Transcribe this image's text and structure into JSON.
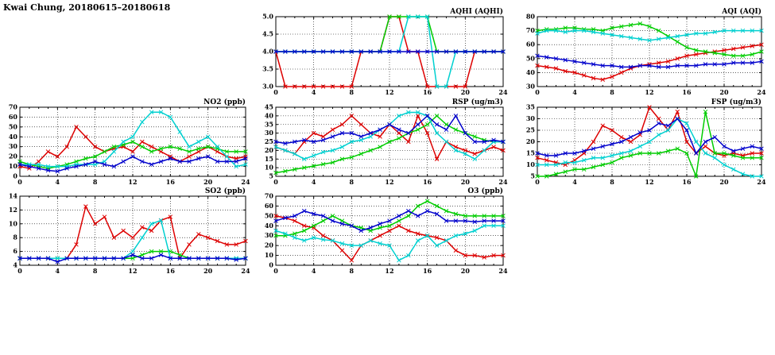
{
  "page": {
    "title": "Kwai Chung, 20180615–20180618"
  },
  "chart_x_hours": [
    0,
    1,
    2,
    3,
    4,
    5,
    6,
    7,
    8,
    9,
    10,
    11,
    12,
    13,
    14,
    15,
    16,
    17,
    18,
    19,
    20,
    21,
    22,
    23,
    24
  ],
  "colors": {
    "red": "#dd0000",
    "blue": "#0000cc",
    "green": "#00cc00",
    "cyan": "#00d0d0"
  },
  "chart_data": [
    {
      "type": "line",
      "title": "AQHI (AQHI)",
      "xlabel": "",
      "ylabel": "",
      "xlim": [
        0,
        24
      ],
      "xticks": [
        0,
        4,
        8,
        12,
        16,
        20,
        24
      ],
      "ylim": [
        3,
        5
      ],
      "yticks": [
        "3.0",
        "3.5",
        "4.0",
        "4.5",
        "5.0"
      ],
      "grid": true,
      "legend": "none",
      "series": [
        {
          "name": "series-red",
          "color": "#dd0000",
          "values": [
            4,
            3,
            3,
            3,
            3,
            3,
            3,
            3,
            3,
            4,
            4,
            4,
            5,
            5,
            4,
            4,
            3,
            3,
            3,
            3,
            3,
            4,
            4,
            4,
            4
          ]
        },
        {
          "name": "series-green",
          "color": "#00cc00",
          "values": [
            4,
            4,
            4,
            4,
            4,
            4,
            4,
            4,
            4,
            4,
            4,
            4,
            5,
            5,
            5,
            5,
            5,
            4,
            4,
            4,
            4,
            4,
            4,
            4,
            4
          ]
        },
        {
          "name": "series-cyan",
          "color": "#00d0d0",
          "values": [
            4,
            4,
            4,
            4,
            4,
            4,
            4,
            4,
            4,
            4,
            4,
            4,
            4,
            4,
            5,
            5,
            5,
            3,
            3,
            4,
            4,
            4,
            4,
            4,
            4
          ]
        },
        {
          "name": "series-blue",
          "color": "#0000cc",
          "values": [
            4,
            4,
            4,
            4,
            4,
            4,
            4,
            4,
            4,
            4,
            4,
            4,
            4,
            4,
            4,
            4,
            4,
            4,
            4,
            4,
            4,
            4,
            4,
            4,
            4
          ]
        }
      ]
    },
    {
      "type": "line",
      "title": "AQI (AQI)",
      "xlabel": "",
      "ylabel": "",
      "xlim": [
        0,
        24
      ],
      "xticks": [
        0,
        4,
        8,
        12,
        16,
        20,
        24
      ],
      "ylim": [
        30,
        80
      ],
      "yticks": [
        "30",
        "40",
        "50",
        "60",
        "70",
        "80"
      ],
      "grid": true,
      "legend": "none",
      "series": [
        {
          "name": "series-red",
          "color": "#dd0000",
          "values": [
            45,
            44,
            43,
            41,
            40,
            38,
            36,
            35,
            37,
            40,
            43,
            45,
            46,
            47,
            48,
            50,
            52,
            53,
            54,
            55,
            56,
            57,
            58,
            59,
            60
          ]
        },
        {
          "name": "series-green",
          "color": "#00cc00",
          "values": [
            70,
            71,
            71,
            72,
            72,
            71,
            71,
            70,
            72,
            73,
            74,
            75,
            73,
            70,
            66,
            62,
            58,
            56,
            55,
            54,
            53,
            52,
            52,
            53,
            55
          ]
        },
        {
          "name": "series-cyan",
          "color": "#00d0d0",
          "values": [
            68,
            70,
            70,
            69,
            70,
            70,
            69,
            68,
            67,
            66,
            65,
            64,
            63,
            64,
            65,
            66,
            67,
            68,
            68,
            69,
            70,
            70,
            70,
            70,
            70
          ]
        },
        {
          "name": "series-blue",
          "color": "#0000cc",
          "values": [
            52,
            51,
            50,
            49,
            48,
            47,
            46,
            45,
            45,
            44,
            44,
            45,
            45,
            44,
            44,
            45,
            45,
            45,
            46,
            46,
            46,
            47,
            47,
            47,
            48
          ]
        }
      ]
    },
    {
      "type": "line",
      "title": "NO2 (ppb)",
      "xlabel": "",
      "ylabel": "",
      "xlim": [
        0,
        24
      ],
      "xticks": [
        0,
        4,
        8,
        12,
        16,
        20,
        24
      ],
      "ylim": [
        0,
        70
      ],
      "yticks": [
        "0",
        "10",
        "20",
        "30",
        "40",
        "50",
        "60",
        "70"
      ],
      "grid": true,
      "legend": "none",
      "series": [
        {
          "name": "series-red",
          "color": "#dd0000",
          "values": [
            10,
            8,
            15,
            25,
            20,
            30,
            50,
            40,
            30,
            25,
            28,
            30,
            25,
            35,
            30,
            25,
            20,
            15,
            20,
            25,
            30,
            25,
            20,
            18,
            20
          ]
        },
        {
          "name": "series-green",
          "color": "#00cc00",
          "values": [
            15,
            12,
            10,
            8,
            10,
            12,
            15,
            18,
            20,
            25,
            30,
            32,
            35,
            30,
            25,
            28,
            30,
            28,
            25,
            28,
            30,
            28,
            25,
            25,
            25
          ]
        },
        {
          "name": "series-cyan",
          "color": "#00d0d0",
          "values": [
            12,
            12,
            12,
            10,
            10,
            10,
            12,
            12,
            12,
            15,
            25,
            35,
            40,
            55,
            65,
            65,
            60,
            45,
            30,
            35,
            40,
            30,
            20,
            10,
            12
          ]
        },
        {
          "name": "series-blue",
          "color": "#0000cc",
          "values": [
            12,
            10,
            8,
            6,
            5,
            8,
            10,
            12,
            15,
            12,
            10,
            15,
            20,
            15,
            12,
            15,
            18,
            15,
            15,
            18,
            20,
            15,
            15,
            15,
            18
          ]
        }
      ]
    },
    {
      "type": "line",
      "title": "RSP (ug/m3)",
      "xlabel": "",
      "ylabel": "",
      "xlim": [
        0,
        24
      ],
      "xticks": [
        0,
        4,
        8,
        12,
        16,
        20,
        24
      ],
      "ylim": [
        5,
        45
      ],
      "yticks": [
        "5",
        "10",
        "15",
        "20",
        "25",
        "30",
        "35",
        "40",
        "45"
      ],
      "grid": true,
      "legend": "none",
      "series": [
        {
          "name": "series-red",
          "color": "#dd0000",
          "values": [
            22,
            20,
            18,
            25,
            30,
            28,
            32,
            35,
            40,
            35,
            30,
            28,
            35,
            30,
            25,
            40,
            30,
            15,
            25,
            22,
            20,
            18,
            20,
            22,
            20
          ]
        },
        {
          "name": "series-green",
          "color": "#00cc00",
          "values": [
            7,
            8,
            9,
            10,
            11,
            12,
            13,
            15,
            16,
            18,
            20,
            22,
            25,
            27,
            30,
            32,
            35,
            40,
            35,
            32,
            30,
            28,
            26,
            25,
            25
          ]
        },
        {
          "name": "series-cyan",
          "color": "#00d0d0",
          "values": [
            22,
            20,
            18,
            15,
            17,
            19,
            20,
            22,
            25,
            26,
            28,
            32,
            35,
            40,
            42,
            42,
            40,
            30,
            25,
            20,
            18,
            15,
            20,
            25,
            25
          ]
        },
        {
          "name": "series-blue",
          "color": "#0000cc",
          "values": [
            25,
            24,
            25,
            26,
            25,
            26,
            28,
            30,
            30,
            28,
            30,
            32,
            35,
            32,
            30,
            35,
            40,
            35,
            32,
            40,
            30,
            25,
            25,
            26,
            25
          ]
        }
      ]
    },
    {
      "type": "line",
      "title": "FSP (ug/m3)",
      "xlabel": "",
      "ylabel": "",
      "xlim": [
        0,
        24
      ],
      "xticks": [
        0,
        4,
        8,
        12,
        16,
        20,
        24
      ],
      "ylim": [
        5,
        35
      ],
      "yticks": [
        "5",
        "10",
        "15",
        "20",
        "25",
        "30",
        "35"
      ],
      "grid": true,
      "legend": "none",
      "series": [
        {
          "name": "series-red",
          "color": "#dd0000",
          "values": [
            13,
            12,
            11,
            10,
            12,
            15,
            20,
            27,
            25,
            22,
            20,
            23,
            35,
            30,
            25,
            33,
            20,
            15,
            18,
            15,
            14,
            15,
            14,
            15,
            15
          ]
        },
        {
          "name": "series-green",
          "color": "#00cc00",
          "values": [
            5,
            5,
            6,
            7,
            8,
            8,
            9,
            10,
            11,
            13,
            14,
            15,
            15,
            15,
            16,
            17,
            15,
            5,
            33,
            15,
            15,
            14,
            13,
            13,
            13
          ]
        },
        {
          "name": "series-cyan",
          "color": "#00d0d0",
          "values": [
            10,
            10,
            10,
            11,
            11,
            12,
            13,
            13,
            14,
            15,
            16,
            18,
            20,
            23,
            25,
            30,
            28,
            20,
            15,
            13,
            10,
            8,
            6,
            5,
            5
          ]
        },
        {
          "name": "series-blue",
          "color": "#0000cc",
          "values": [
            15,
            14,
            14,
            15,
            15,
            16,
            17,
            18,
            19,
            20,
            22,
            24,
            25,
            28,
            27,
            30,
            25,
            15,
            20,
            22,
            18,
            16,
            17,
            18,
            17
          ]
        }
      ]
    },
    {
      "type": "line",
      "title": "SO2 (ppb)",
      "xlabel": "",
      "ylabel": "",
      "xlim": [
        0,
        24
      ],
      "xticks": [
        0,
        4,
        8,
        12,
        16,
        20,
        24
      ],
      "ylim": [
        4,
        14
      ],
      "yticks": [
        "4",
        "6",
        "8",
        "10",
        "12",
        "14"
      ],
      "grid": true,
      "legend": "none",
      "series": [
        {
          "name": "series-red",
          "color": "#dd0000",
          "values": [
            5,
            5,
            5,
            5,
            5,
            5,
            7,
            12.5,
            10,
            11,
            8,
            9,
            8,
            9.5,
            9,
            10.5,
            11,
            5,
            7,
            8.5,
            8,
            7.5,
            7,
            7,
            7.5
          ]
        },
        {
          "name": "series-green",
          "color": "#00cc00",
          "values": [
            5,
            5,
            5,
            5,
            5,
            5,
            5,
            5,
            5,
            5,
            5,
            5,
            5,
            5.5,
            6,
            6,
            6,
            5.5,
            5,
            5,
            5,
            5,
            5,
            5,
            5
          ]
        },
        {
          "name": "series-cyan",
          "color": "#00d0d0",
          "values": [
            5,
            5,
            5,
            5,
            5,
            5,
            5,
            5,
            5,
            5,
            5,
            5,
            6,
            8,
            10,
            10.5,
            5,
            5,
            5,
            5,
            5,
            5,
            5,
            5,
            5
          ]
        },
        {
          "name": "series-blue",
          "color": "#0000cc",
          "values": [
            5,
            5,
            5,
            5,
            4.5,
            5,
            5,
            5,
            5,
            5,
            5,
            5,
            5.5,
            5,
            5,
            5.5,
            5,
            5,
            5,
            5,
            5,
            5,
            5,
            4.8,
            5
          ]
        }
      ]
    },
    {
      "type": "line",
      "title": "O3 (ppb)",
      "xlabel": "",
      "ylabel": "",
      "xlim": [
        0,
        24
      ],
      "xticks": [
        0,
        4,
        8,
        12,
        16,
        20,
        24
      ],
      "ylim": [
        0,
        70
      ],
      "yticks": [
        "0",
        "10",
        "20",
        "30",
        "40",
        "50",
        "60",
        "70"
      ],
      "grid": true,
      "legend": "none",
      "series": [
        {
          "name": "series-red",
          "color": "#dd0000",
          "values": [
            50,
            48,
            45,
            40,
            38,
            30,
            25,
            15,
            5,
            20,
            25,
            30,
            35,
            40,
            35,
            32,
            30,
            28,
            25,
            15,
            10,
            10,
            8,
            10,
            10
          ]
        },
        {
          "name": "series-green",
          "color": "#00cc00",
          "values": [
            30,
            30,
            32,
            35,
            40,
            45,
            50,
            45,
            40,
            38,
            35,
            38,
            40,
            45,
            50,
            60,
            65,
            60,
            55,
            52,
            50,
            50,
            50,
            50,
            50
          ]
        },
        {
          "name": "series-cyan",
          "color": "#00d0d0",
          "values": [
            35,
            32,
            28,
            25,
            28,
            26,
            25,
            22,
            20,
            20,
            25,
            22,
            20,
            5,
            10,
            25,
            30,
            20,
            25,
            30,
            32,
            35,
            40,
            40,
            40
          ]
        },
        {
          "name": "series-blue",
          "color": "#0000cc",
          "values": [
            45,
            48,
            50,
            55,
            52,
            50,
            45,
            42,
            40,
            35,
            38,
            42,
            45,
            50,
            55,
            50,
            55,
            52,
            45,
            45,
            45,
            44,
            45,
            45,
            45
          ]
        }
      ]
    }
  ]
}
